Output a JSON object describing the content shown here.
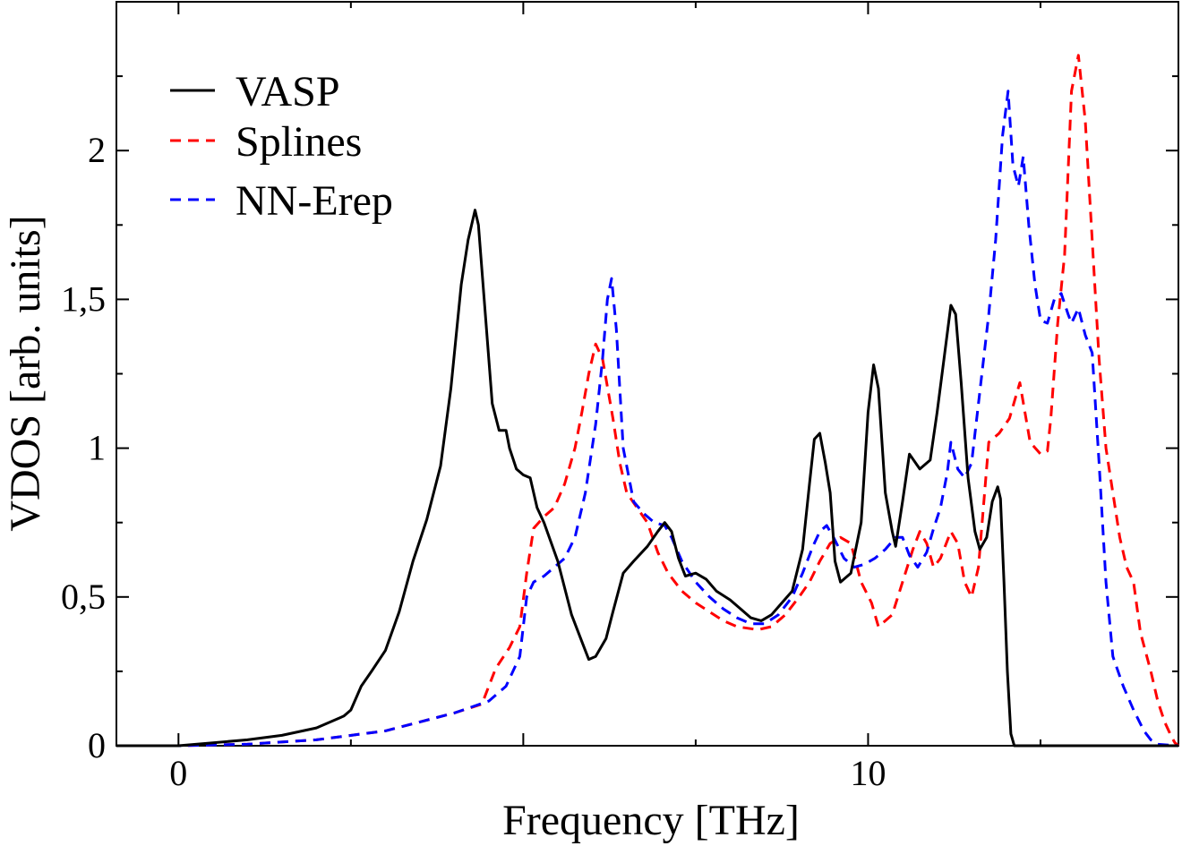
{
  "chart_data": {
    "type": "line",
    "title": "",
    "xlabel": "Frequency [THz]",
    "ylabel": "VDOS [arb. units]",
    "xlim": [
      -0.9,
      14.5
    ],
    "ylim": [
      0,
      2.5
    ],
    "x_major_ticks": [
      0,
      5,
      10
    ],
    "x_tick_labels": [
      {
        "value": 0,
        "label": "0"
      },
      {
        "value": 10,
        "label": "10"
      }
    ],
    "y_ticks": [
      {
        "value": 0,
        "label": "0"
      },
      {
        "value": 0.5,
        "label": "0,5"
      },
      {
        "value": 1,
        "label": "1"
      },
      {
        "value": 1.5,
        "label": "1,5"
      },
      {
        "value": 2,
        "label": "2"
      }
    ],
    "legend_position": "top-left",
    "series": [
      {
        "name": "VASP",
        "color": "#000000",
        "dash": "solid",
        "points": [
          [
            -0.9,
            0
          ],
          [
            0,
            0
          ],
          [
            0.5,
            0.01
          ],
          [
            1,
            0.02
          ],
          [
            1.5,
            0.035
          ],
          [
            2,
            0.06
          ],
          [
            2.4,
            0.1
          ],
          [
            2.5,
            0.12
          ],
          [
            2.65,
            0.2
          ],
          [
            2.8,
            0.25
          ],
          [
            3,
            0.32
          ],
          [
            3.2,
            0.45
          ],
          [
            3.4,
            0.62
          ],
          [
            3.6,
            0.76
          ],
          [
            3.8,
            0.94
          ],
          [
            3.95,
            1.2
          ],
          [
            4.1,
            1.55
          ],
          [
            4.2,
            1.7
          ],
          [
            4.3,
            1.8
          ],
          [
            4.35,
            1.75
          ],
          [
            4.45,
            1.45
          ],
          [
            4.55,
            1.15
          ],
          [
            4.65,
            1.06
          ],
          [
            4.75,
            1.06
          ],
          [
            4.8,
            1.0
          ],
          [
            4.9,
            0.93
          ],
          [
            5,
            0.91
          ],
          [
            5.1,
            0.9
          ],
          [
            5.2,
            0.8
          ],
          [
            5.3,
            0.75
          ],
          [
            5.5,
            0.62
          ],
          [
            5.7,
            0.44
          ],
          [
            5.85,
            0.35
          ],
          [
            5.95,
            0.29
          ],
          [
            6.05,
            0.3
          ],
          [
            6.2,
            0.36
          ],
          [
            6.3,
            0.45
          ],
          [
            6.45,
            0.58
          ],
          [
            6.6,
            0.62
          ],
          [
            6.8,
            0.67
          ],
          [
            6.95,
            0.72
          ],
          [
            7.05,
            0.75
          ],
          [
            7.15,
            0.72
          ],
          [
            7.25,
            0.63
          ],
          [
            7.35,
            0.57
          ],
          [
            7.5,
            0.58
          ],
          [
            7.65,
            0.56
          ],
          [
            7.8,
            0.52
          ],
          [
            8,
            0.49
          ],
          [
            8.15,
            0.46
          ],
          [
            8.3,
            0.43
          ],
          [
            8.45,
            0.42
          ],
          [
            8.6,
            0.44
          ],
          [
            8.75,
            0.48
          ],
          [
            8.9,
            0.52
          ],
          [
            9.05,
            0.66
          ],
          [
            9.15,
            0.88
          ],
          [
            9.22,
            1.03
          ],
          [
            9.3,
            1.05
          ],
          [
            9.38,
            0.95
          ],
          [
            9.45,
            0.85
          ],
          [
            9.52,
            0.62
          ],
          [
            9.6,
            0.55
          ],
          [
            9.75,
            0.58
          ],
          [
            9.9,
            0.75
          ],
          [
            10.0,
            1.12
          ],
          [
            10.08,
            1.28
          ],
          [
            10.15,
            1.2
          ],
          [
            10.25,
            0.85
          ],
          [
            10.35,
            0.72
          ],
          [
            10.4,
            0.67
          ],
          [
            10.5,
            0.82
          ],
          [
            10.6,
            0.98
          ],
          [
            10.75,
            0.93
          ],
          [
            10.9,
            0.96
          ],
          [
            11.0,
            1.12
          ],
          [
            11.1,
            1.3
          ],
          [
            11.2,
            1.48
          ],
          [
            11.27,
            1.45
          ],
          [
            11.35,
            1.22
          ],
          [
            11.45,
            0.9
          ],
          [
            11.55,
            0.72
          ],
          [
            11.62,
            0.66
          ],
          [
            11.72,
            0.7
          ],
          [
            11.8,
            0.82
          ],
          [
            11.88,
            0.87
          ],
          [
            11.92,
            0.83
          ],
          [
            11.97,
            0.55
          ],
          [
            12.02,
            0.25
          ],
          [
            12.07,
            0.04
          ],
          [
            12.12,
            0
          ],
          [
            13,
            0
          ],
          [
            14.5,
            0
          ]
        ]
      },
      {
        "name": "Splines",
        "color": "#ff0000",
        "dash": "dashed",
        "points": [
          [
            -0.9,
            0
          ],
          [
            0,
            0
          ],
          [
            1,
            0.005
          ],
          [
            2,
            0.02
          ],
          [
            3,
            0.05
          ],
          [
            3.5,
            0.08
          ],
          [
            4,
            0.11
          ],
          [
            4.4,
            0.14
          ],
          [
            4.5,
            0.2
          ],
          [
            4.6,
            0.26
          ],
          [
            4.8,
            0.33
          ],
          [
            4.95,
            0.4
          ],
          [
            5.05,
            0.58
          ],
          [
            5.15,
            0.73
          ],
          [
            5.3,
            0.77
          ],
          [
            5.45,
            0.8
          ],
          [
            5.6,
            0.88
          ],
          [
            5.75,
            1.0
          ],
          [
            5.85,
            1.12
          ],
          [
            5.95,
            1.25
          ],
          [
            6.05,
            1.35
          ],
          [
            6.15,
            1.3
          ],
          [
            6.3,
            1.1
          ],
          [
            6.4,
            0.95
          ],
          [
            6.5,
            0.85
          ],
          [
            6.65,
            0.8
          ],
          [
            6.8,
            0.75
          ],
          [
            6.95,
            0.65
          ],
          [
            7.1,
            0.58
          ],
          [
            7.3,
            0.52
          ],
          [
            7.5,
            0.48
          ],
          [
            7.7,
            0.45
          ],
          [
            7.9,
            0.42
          ],
          [
            8.1,
            0.4
          ],
          [
            8.4,
            0.39
          ],
          [
            8.6,
            0.4
          ],
          [
            8.8,
            0.44
          ],
          [
            9.0,
            0.5
          ],
          [
            9.15,
            0.55
          ],
          [
            9.3,
            0.62
          ],
          [
            9.45,
            0.68
          ],
          [
            9.6,
            0.7
          ],
          [
            9.75,
            0.68
          ],
          [
            9.9,
            0.55
          ],
          [
            10.05,
            0.48
          ],
          [
            10.15,
            0.4
          ],
          [
            10.35,
            0.44
          ],
          [
            10.5,
            0.55
          ],
          [
            10.65,
            0.66
          ],
          [
            10.75,
            0.72
          ],
          [
            10.85,
            0.68
          ],
          [
            10.95,
            0.6
          ],
          [
            11.05,
            0.63
          ],
          [
            11.2,
            0.72
          ],
          [
            11.3,
            0.68
          ],
          [
            11.4,
            0.55
          ],
          [
            11.5,
            0.5
          ],
          [
            11.6,
            0.6
          ],
          [
            11.75,
            1.02
          ],
          [
            11.9,
            1.05
          ],
          [
            12.05,
            1.1
          ],
          [
            12.2,
            1.22
          ],
          [
            12.35,
            1.02
          ],
          [
            12.5,
            0.98
          ],
          [
            12.6,
            0.99
          ],
          [
            12.65,
            1.1
          ],
          [
            12.75,
            1.42
          ],
          [
            12.85,
            1.65
          ],
          [
            12.95,
            2.2
          ],
          [
            13.05,
            2.32
          ],
          [
            13.15,
            2.1
          ],
          [
            13.25,
            1.7
          ],
          [
            13.35,
            1.3
          ],
          [
            13.45,
            1.0
          ],
          [
            13.55,
            0.85
          ],
          [
            13.65,
            0.7
          ],
          [
            13.75,
            0.6
          ],
          [
            13.85,
            0.55
          ],
          [
            13.95,
            0.38
          ],
          [
            14.1,
            0.25
          ],
          [
            14.2,
            0.15
          ],
          [
            14.3,
            0.08
          ],
          [
            14.4,
            0.03
          ],
          [
            14.45,
            0.01
          ],
          [
            14.5,
            0
          ]
        ]
      },
      {
        "name": "NN-Erep",
        "color": "#0000ff",
        "dash": "dashed",
        "points": [
          [
            -0.9,
            0
          ],
          [
            0,
            0
          ],
          [
            1,
            0.005
          ],
          [
            2,
            0.02
          ],
          [
            3,
            0.05
          ],
          [
            3.5,
            0.08
          ],
          [
            4,
            0.11
          ],
          [
            4.5,
            0.15
          ],
          [
            4.75,
            0.2
          ],
          [
            4.95,
            0.3
          ],
          [
            5.05,
            0.5
          ],
          [
            5.15,
            0.55
          ],
          [
            5.3,
            0.57
          ],
          [
            5.45,
            0.6
          ],
          [
            5.6,
            0.63
          ],
          [
            5.75,
            0.7
          ],
          [
            5.9,
            0.85
          ],
          [
            6.05,
            1.08
          ],
          [
            6.15,
            1.3
          ],
          [
            6.22,
            1.5
          ],
          [
            6.28,
            1.57
          ],
          [
            6.35,
            1.4
          ],
          [
            6.45,
            1.0
          ],
          [
            6.6,
            0.82
          ],
          [
            6.75,
            0.78
          ],
          [
            6.9,
            0.75
          ],
          [
            7.05,
            0.74
          ],
          [
            7.15,
            0.7
          ],
          [
            7.3,
            0.62
          ],
          [
            7.5,
            0.55
          ],
          [
            7.7,
            0.5
          ],
          [
            7.9,
            0.46
          ],
          [
            8.1,
            0.43
          ],
          [
            8.3,
            0.41
          ],
          [
            8.5,
            0.41
          ],
          [
            8.7,
            0.44
          ],
          [
            8.9,
            0.5
          ],
          [
            9.05,
            0.58
          ],
          [
            9.2,
            0.67
          ],
          [
            9.3,
            0.72
          ],
          [
            9.4,
            0.74
          ],
          [
            9.5,
            0.7
          ],
          [
            9.65,
            0.63
          ],
          [
            9.8,
            0.6
          ],
          [
            9.95,
            0.61
          ],
          [
            10.1,
            0.63
          ],
          [
            10.25,
            0.66
          ],
          [
            10.4,
            0.7
          ],
          [
            10.5,
            0.7
          ],
          [
            10.6,
            0.64
          ],
          [
            10.72,
            0.6
          ],
          [
            10.85,
            0.65
          ],
          [
            10.95,
            0.73
          ],
          [
            11.05,
            0.8
          ],
          [
            11.15,
            0.92
          ],
          [
            11.2,
            1.02
          ],
          [
            11.3,
            0.93
          ],
          [
            11.4,
            0.9
          ],
          [
            11.5,
            0.95
          ],
          [
            11.6,
            1.15
          ],
          [
            11.75,
            1.45
          ],
          [
            11.85,
            1.7
          ],
          [
            11.95,
            2.05
          ],
          [
            12.03,
            2.2
          ],
          [
            12.1,
            1.95
          ],
          [
            12.18,
            1.88
          ],
          [
            12.25,
            1.98
          ],
          [
            12.33,
            1.75
          ],
          [
            12.42,
            1.55
          ],
          [
            12.5,
            1.43
          ],
          [
            12.6,
            1.42
          ],
          [
            12.7,
            1.5
          ],
          [
            12.8,
            1.52
          ],
          [
            12.9,
            1.45
          ],
          [
            12.95,
            1.42
          ],
          [
            13.05,
            1.47
          ],
          [
            13.15,
            1.38
          ],
          [
            13.25,
            1.32
          ],
          [
            13.35,
            0.95
          ],
          [
            13.45,
            0.55
          ],
          [
            13.55,
            0.3
          ],
          [
            13.7,
            0.2
          ],
          [
            13.85,
            0.12
          ],
          [
            14.0,
            0.05
          ],
          [
            14.1,
            0.02
          ],
          [
            14.2,
            0.005
          ],
          [
            14.5,
            0
          ]
        ]
      }
    ]
  }
}
